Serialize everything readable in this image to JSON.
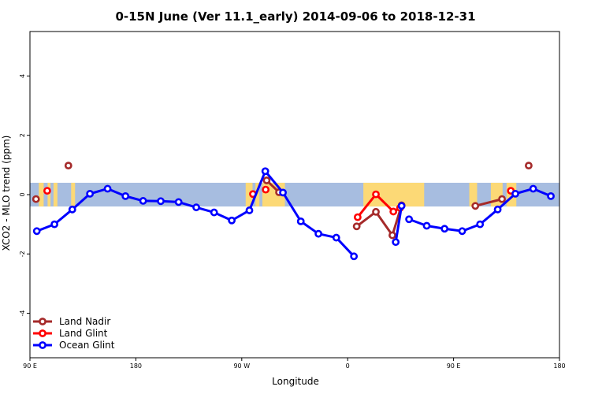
{
  "chart_data": {
    "type": "line",
    "title": "0-15N June (Ver 11.1_early)   2014-09-06 to 2018-12-31",
    "xlabel": "Longitude",
    "ylabel": "XCO2 - MLO trend (ppm)",
    "xlim": [
      -90,
      180
    ],
    "ylim": [
      -5.5,
      5.5
    ],
    "x_ticks": [
      {
        "value": -90,
        "label": "90 E"
      },
      {
        "value": -36,
        "label": "180"
      },
      {
        "value": 18,
        "label": "90 W"
      },
      {
        "value": 72,
        "label": "0"
      },
      {
        "value": 126,
        "label": "90 E"
      },
      {
        "value": 180,
        "label": "180"
      }
    ],
    "y_ticks": [
      -4,
      -2,
      0,
      2,
      4
    ],
    "band": {
      "ymin": -0.4,
      "ymax": 0.4,
      "ocean_color": "#a7bde0",
      "land_color": "#fcd976"
    },
    "land_segments": [
      [
        -85.5,
        -83
      ],
      [
        -81,
        -79.5
      ],
      [
        -78,
        -76
      ],
      [
        -69,
        -67
      ],
      [
        20,
        23.5
      ],
      [
        25,
        27
      ],
      [
        28.5,
        40
      ],
      [
        80,
        111
      ],
      [
        134,
        138
      ],
      [
        145,
        151
      ],
      [
        153,
        158
      ]
    ],
    "legend_position": "bottom-left",
    "series": [
      {
        "name": "Land Nadir",
        "color": "#a52a2a",
        "segments": [
          [
            [
              -86.9,
              -0.15
            ]
          ],
          [
            [
              -70.4,
              0.98
            ]
          ],
          [
            [
              30.7,
              0.48
            ],
            [
              37.0,
              0.08
            ]
          ],
          [
            [
              76.6,
              -1.07
            ],
            [
              86.4,
              -0.58
            ],
            [
              94.8,
              -1.37
            ],
            [
              99.5,
              -0.36
            ]
          ],
          [
            [
              137.1,
              -0.38
            ],
            [
              150.7,
              -0.15
            ]
          ],
          [
            [
              164.3,
              0.98
            ]
          ]
        ]
      },
      {
        "name": "Land Glint",
        "color": "#ff0000",
        "segments": [
          [
            [
              -81.2,
              0.13
            ]
          ],
          [
            [
              23.7,
              0.02
            ]
          ],
          [
            [
              30.2,
              0.17
            ]
          ],
          [
            [
              77.1,
              -0.76
            ],
            [
              86.4,
              0.01
            ],
            [
              95.3,
              -0.57
            ],
            [
              98.7,
              -0.45
            ]
          ],
          [
            [
              155.2,
              0.13
            ]
          ]
        ]
      },
      {
        "name": "Ocean Glint",
        "color": "#0000ff",
        "segments": [
          [
            [
              -86.5,
              -1.23
            ],
            [
              -77.5,
              -1.0
            ],
            [
              -68.4,
              -0.5
            ],
            [
              -59.4,
              0.03
            ],
            [
              -50.4,
              0.2
            ],
            [
              -41.3,
              -0.05
            ],
            [
              -32.3,
              -0.21
            ],
            [
              -23.3,
              -0.22
            ],
            [
              -14.2,
              -0.25
            ],
            [
              -5.2,
              -0.43
            ],
            [
              3.9,
              -0.6
            ],
            [
              12.9,
              -0.87
            ],
            [
              21.9,
              -0.53
            ],
            [
              30.0,
              0.79
            ],
            [
              39.0,
              0.07
            ],
            [
              48.1,
              -0.9
            ],
            [
              57.1,
              -1.32
            ],
            [
              66.2,
              -1.45
            ],
            [
              75.2,
              -2.08
            ]
          ],
          [
            [
              96.5,
              -1.6
            ],
            [
              99.5,
              -0.38
            ]
          ],
          [
            [
              103.3,
              -0.83
            ],
            [
              112.3,
              -1.05
            ],
            [
              121.4,
              -1.15
            ],
            [
              130.4,
              -1.23
            ],
            [
              139.5,
              -1.0
            ],
            [
              148.5,
              -0.5
            ],
            [
              157.5,
              0.03
            ],
            [
              166.6,
              0.2
            ],
            [
              175.6,
              -0.05
            ]
          ]
        ]
      }
    ]
  }
}
